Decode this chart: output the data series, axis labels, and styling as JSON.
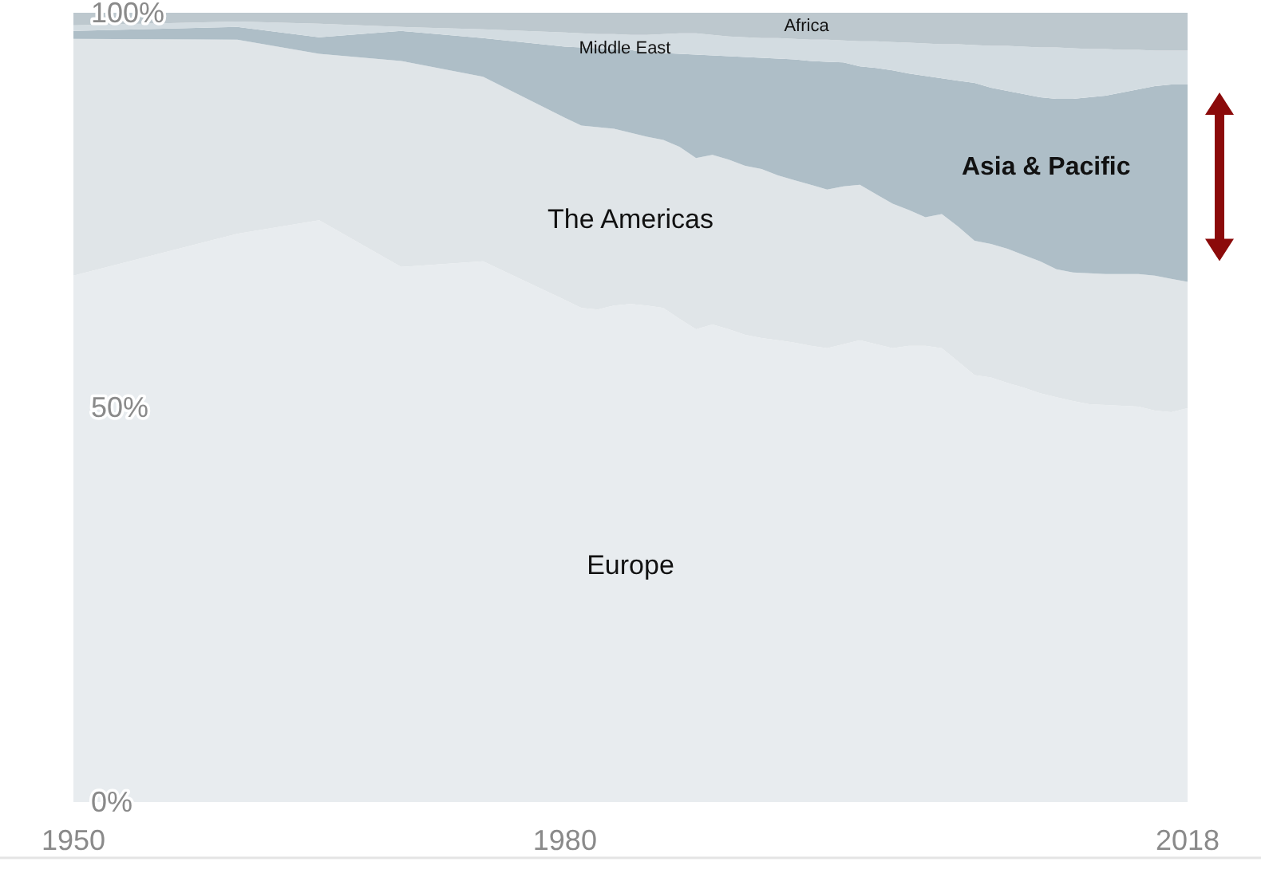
{
  "chart_data": {
    "type": "area",
    "stacked": true,
    "x": [
      1950,
      1960,
      1965,
      1970,
      1975,
      1980,
      1981,
      1982,
      1983,
      1984,
      1985,
      1986,
      1987,
      1988,
      1989,
      1990,
      1991,
      1992,
      1993,
      1994,
      1995,
      1996,
      1997,
      1998,
      1999,
      2000,
      2001,
      2002,
      2003,
      2004,
      2005,
      2006,
      2007,
      2008,
      2009,
      2010,
      2011,
      2012,
      2013,
      2014,
      2015,
      2016,
      2017,
      2018
    ],
    "xlim": [
      1950,
      2018
    ],
    "xticks": [
      1950,
      1980,
      2018
    ],
    "ylim": [
      0,
      100
    ],
    "yticks": [
      {
        "value": 0,
        "label": "0%"
      },
      {
        "value": 50,
        "label": "50%"
      },
      {
        "value": 100,
        "label": "100%"
      }
    ],
    "series": [
      {
        "name": "Europe",
        "color": "#e8ecef",
        "values": [
          66.7,
          72.0,
          73.7,
          67.8,
          68.5,
          63.6,
          62.6,
          62.4,
          62.9,
          63.1,
          62.9,
          62.6,
          61.2,
          59.9,
          60.5,
          59.9,
          59.2,
          58.8,
          58.5,
          58.2,
          57.8,
          57.5,
          58.0,
          58.5,
          58.0,
          57.5,
          57.8,
          57.8,
          57.5,
          55.8,
          54.1,
          53.8,
          53.1,
          52.5,
          51.8,
          51.3,
          50.8,
          50.4,
          50.3,
          50.2,
          50.1,
          49.6,
          49.4,
          49.9
        ]
      },
      {
        "name": "The Americas",
        "color": "#e0e5e8",
        "values": [
          30.0,
          24.6,
          21.1,
          26.1,
          23.4,
          23.1,
          23.1,
          23.1,
          22.4,
          21.7,
          21.4,
          21.3,
          21.8,
          21.7,
          21.5,
          21.5,
          21.4,
          21.4,
          20.9,
          20.6,
          20.4,
          20.1,
          20.0,
          19.7,
          19.0,
          18.3,
          17.2,
          16.3,
          17.0,
          17.1,
          17.0,
          16.9,
          17.0,
          16.8,
          16.7,
          16.2,
          16.3,
          16.6,
          16.6,
          16.7,
          16.8,
          17.1,
          16.9,
          16.0
        ]
      },
      {
        "name": "Asia & Pacific",
        "color": "#aebec7",
        "values": [
          1.0,
          1.6,
          2.1,
          3.8,
          4.9,
          9.0,
          9.9,
          10.0,
          10.1,
          10.5,
          10.6,
          11.0,
          11.8,
          13.1,
          12.6,
          13.1,
          13.8,
          14.1,
          14.8,
          15.3,
          15.7,
          16.2,
          15.7,
          15.0,
          16.0,
          16.9,
          17.3,
          17.9,
          17.2,
          18.5,
          20.0,
          19.8,
          20.0,
          20.4,
          20.8,
          21.6,
          22.0,
          22.3,
          22.6,
          23.0,
          23.4,
          24.0,
          24.6,
          25.0
        ]
      },
      {
        "name": "Middle East",
        "color": "#d3dce1",
        "values": [
          0.7,
          0.7,
          1.7,
          0.5,
          1.1,
          1.8,
          1.8,
          1.8,
          1.9,
          1.9,
          2.3,
          2.4,
          2.6,
          2.7,
          2.6,
          2.5,
          2.5,
          2.5,
          2.6,
          2.6,
          2.7,
          2.8,
          2.8,
          3.2,
          3.4,
          3.6,
          3.9,
          4.1,
          4.3,
          4.6,
          4.8,
          5.3,
          5.7,
          6.0,
          6.3,
          6.5,
          6.4,
          6.1,
          5.9,
          5.4,
          5.0,
          4.5,
          4.3,
          4.3
        ]
      },
      {
        "name": "Africa",
        "color": "#bdc8ce",
        "values": [
          1.6,
          1.1,
          1.4,
          1.8,
          2.1,
          2.5,
          2.6,
          2.7,
          2.7,
          2.8,
          2.8,
          2.7,
          2.6,
          2.6,
          2.8,
          3.0,
          3.1,
          3.2,
          3.2,
          3.3,
          3.4,
          3.4,
          3.5,
          3.6,
          3.6,
          3.7,
          3.8,
          3.9,
          4.0,
          4.0,
          4.1,
          4.2,
          4.2,
          4.3,
          4.4,
          4.4,
          4.5,
          4.6,
          4.6,
          4.7,
          4.7,
          4.8,
          4.8,
          4.8
        ]
      }
    ]
  }
}
